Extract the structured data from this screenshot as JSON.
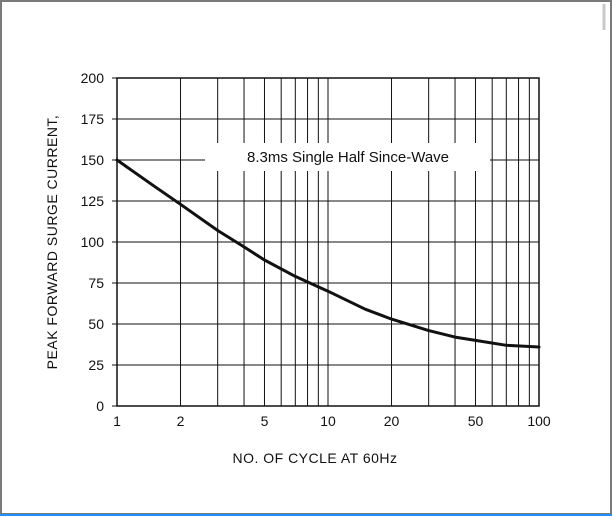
{
  "chart_data": {
    "type": "line",
    "xlabel": "NO. OF CYCLE AT 60Hz",
    "ylabel": "PEAK FORWARD SURGE CURRENT,",
    "annotation": "8.3ms Single Half Since-Wave",
    "x_scale": "log",
    "xlim": [
      1,
      100
    ],
    "ylim": [
      0,
      200
    ],
    "x_ticks": [
      1,
      2,
      5,
      10,
      20,
      50,
      100
    ],
    "x_tick_labels": [
      "1",
      "2",
      "5",
      "10",
      "20",
      "50",
      "100"
    ],
    "y_ticks": [
      0,
      25,
      50,
      75,
      100,
      125,
      150,
      175,
      200
    ],
    "y_tick_labels": [
      "0",
      "25",
      "50",
      "75",
      "100",
      "125",
      "150",
      "175",
      "200"
    ],
    "grid": true,
    "series": [
      {
        "x": [
          1,
          1.5,
          2,
          3,
          4,
          5,
          7,
          10,
          15,
          20,
          30,
          40,
          50,
          70,
          100
        ],
        "y": [
          150,
          134,
          123,
          107,
          97,
          89,
          79,
          70,
          59,
          53,
          46,
          42,
          40,
          37,
          36
        ]
      }
    ],
    "colors": {
      "line": "#111111",
      "grid": "#111111",
      "frame": "#7a7a7a",
      "accent": "#1e90ff"
    }
  }
}
